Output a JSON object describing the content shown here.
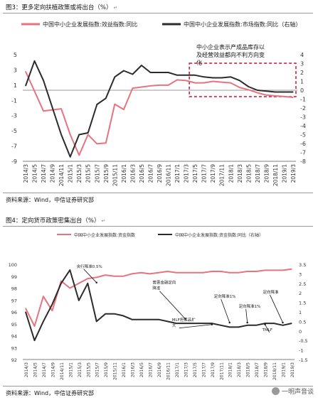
{
  "figure1": {
    "title": "图3：更多定向扶植政策或将出台（%）",
    "source": "资料来源：Wind，中信证券研究部",
    "annotation_lines": [
      "中小企业表示产成品库存以",
      "及经营效益都向不利方向变",
      "化"
    ]
  },
  "figure2": {
    "title": "图4：定向货币政策密集出台（%）",
    "source": "资料来源：Wind，中信证券研究部"
  },
  "watermark": {
    "text": "一明声音谈",
    "icon": "wechat-icon"
  },
  "colors": {
    "pink": "#e8737f",
    "dark": "#2b2b2b",
    "dashed_box": "#c8102e",
    "rule": "#9a9a9a"
  },
  "chart_data": [
    {
      "type": "line",
      "x": [
        "2014/3",
        "2014/5",
        "2014/7",
        "2014/9",
        "2014/11",
        "2015/1",
        "2015/3",
        "2015/5",
        "2015/7",
        "2015/9",
        "2015/11",
        "2016/1",
        "2016/3",
        "2016/5",
        "2016/7",
        "2016/9",
        "2016/11",
        "2017/1",
        "2017/3",
        "2017/5",
        "2017/7",
        "2017/9",
        "2017/11",
        "2018/1",
        "2018/3",
        "2018/5",
        "2018/7",
        "2018/9",
        "2018/11",
        "2019/1",
        "2019/3"
      ],
      "series": [
        {
          "name": "中国中小企业发展指数:效益指数:同比",
          "color": "#e8737f",
          "axis": "left",
          "values": [
            2.8,
            null,
            -2.4,
            null,
            -2.1,
            -5.5,
            -8.2,
            -5.5,
            -6.7,
            -6.6,
            -1.5,
            -2.2,
            0.6,
            null,
            0.9,
            1.0,
            1.0,
            1.7,
            1.6,
            1.3,
            1.3,
            1.5,
            1.4,
            1.3,
            0.7,
            0.4,
            0.0,
            -0.3,
            -0.4,
            -0.5,
            -0.6
          ]
        },
        {
          "name": "中国中小企业发展指数:市场指数:同比（右轴）",
          "color": "#2b2b2b",
          "axis": "right",
          "values": [
            0.5,
            3.3,
            1.1,
            null,
            -5.0,
            -7.5,
            -5.0,
            -4.8,
            -1.6,
            -0.9,
            1.5,
            2.2,
            1.8,
            2.8,
            2.0,
            2.0,
            2.0,
            1.7,
            1.7,
            1.7,
            1.5,
            1.4,
            1.4,
            1.5,
            1.1,
            0.4,
            0.0,
            -0.1,
            -0.2,
            -0.2,
            -0.2
          ]
        }
      ],
      "y_left": {
        "min": -9,
        "max": 5,
        "ticks": [
          -9,
          -7,
          -5,
          -3,
          -1,
          1,
          3,
          5
        ]
      },
      "y_right": {
        "min": -8,
        "max": 4,
        "ticks": [
          -8,
          -7,
          -6,
          -5,
          -4,
          -3,
          -2,
          -1,
          0,
          1,
          2,
          3,
          4
        ]
      },
      "legend": "top"
    },
    {
      "type": "line",
      "x": [
        "2014/3",
        "2014/5",
        "2014/7",
        "2014/9",
        "2014/11",
        "2015/1",
        "2015/3",
        "2015/5",
        "2015/7",
        "2015/9",
        "2015/11",
        "2016/1",
        "2016/3",
        "2016/5",
        "2016/7",
        "2016/9",
        "2016/11",
        "2017/1",
        "2017/3",
        "2017/5",
        "2017/7",
        "2017/9",
        "2017/11",
        "2018/1",
        "2018/3",
        "2018/5",
        "2018/7",
        "2018/9",
        "2018/11",
        "2019/1",
        "2019/3"
      ],
      "series": [
        {
          "name": "中国中小企业发展指数:资金指数",
          "color": "#e8737f",
          "axis": "left",
          "values": [
            96.3,
            94.8,
            97.3,
            96.1,
            98.6,
            98.0,
            98.4,
            98.8,
            98.9,
            99.1,
            99.0,
            99.0,
            99.2,
            99.3,
            99.2,
            99.3,
            99.4,
            99.3,
            99.3,
            99.3,
            99.3,
            99.4,
            99.4,
            99.3,
            99.3,
            99.4,
            99.4,
            99.5,
            99.5,
            99.5,
            99.6
          ]
        },
        {
          "name": "中国中小企业发展指数:资金指数:同比（右轴）",
          "color": "#2b2b2b",
          "axis": "right",
          "values": [
            1.0,
            -0.5,
            0.5,
            1.4,
            2.5,
            3.2,
            1.6,
            2.5,
            0.5,
            0.9,
            0.9,
            0.8,
            0.6,
            0.6,
            0.6,
            0.6,
            0.5,
            0.4,
            0.4,
            0.4,
            0.4,
            0.4,
            0.3,
            0.2,
            0.2,
            0.3,
            0.3,
            0.4,
            0.4,
            0.3,
            0.4
          ]
        }
      ],
      "y_left": {
        "min": 92,
        "max": 100,
        "ticks": [
          92,
          93,
          94,
          95,
          96,
          97,
          98,
          99,
          100
        ]
      },
      "y_right": {
        "min": -1.5,
        "max": 3.5,
        "ticks": [
          -1.5,
          -1,
          -0.5,
          0,
          0.5,
          1,
          1.5,
          2,
          2.5,
          3,
          3.5
        ]
      },
      "legend": "top",
      "annotations": [
        {
          "text": [
            "央行降准0.5%"
          ],
          "x_index": 8,
          "y_right": 2.5
        },
        {
          "text": [
            "普惠金融定向",
            "降准"
          ],
          "x_index": 18,
          "y_right": 0.6
        },
        {
          "text": [
            "定向降准1%"
          ],
          "x_index": 23,
          "y_right": 0.4
        },
        {
          "text": [
            "定向降准1%"
          ],
          "x_index": 25,
          "y_right": 0.4
        },
        {
          "text": [
            "MLF担保品扩",
            "大"
          ],
          "x_index": 21,
          "y_right": 0.3
        },
        {
          "text": [
            "TMLF"
          ],
          "x_index": 27,
          "y_right": 0.3
        },
        {
          "text": [
            "定向降准"
          ],
          "x_index": 29,
          "y_right": 0.4
        }
      ]
    }
  ]
}
